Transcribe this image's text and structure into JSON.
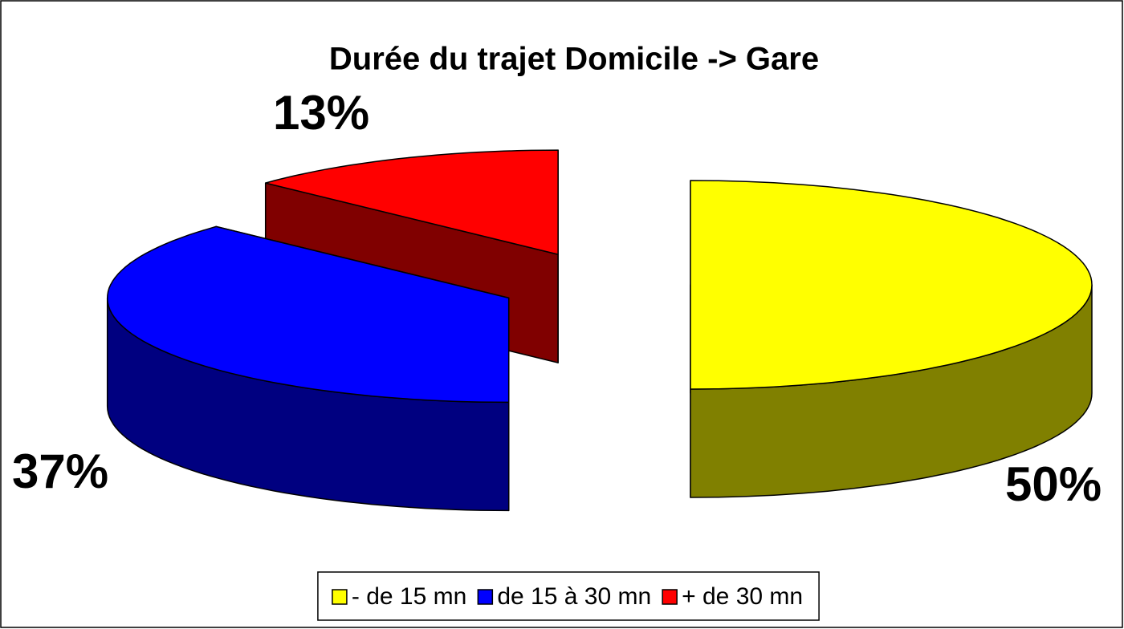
{
  "chart_data": {
    "type": "pie",
    "title": "Durée du trajet Domicile -> Gare",
    "categories": [
      "- de 15 mn",
      "de 15 à 30 mn",
      "+ de 30 mn"
    ],
    "values": [
      50,
      37,
      13
    ],
    "value_labels": [
      "50%",
      "37%",
      "13%"
    ],
    "colors": [
      "#ffff00",
      "#0000ff",
      "#ff0000"
    ],
    "legend": "bottom"
  }
}
